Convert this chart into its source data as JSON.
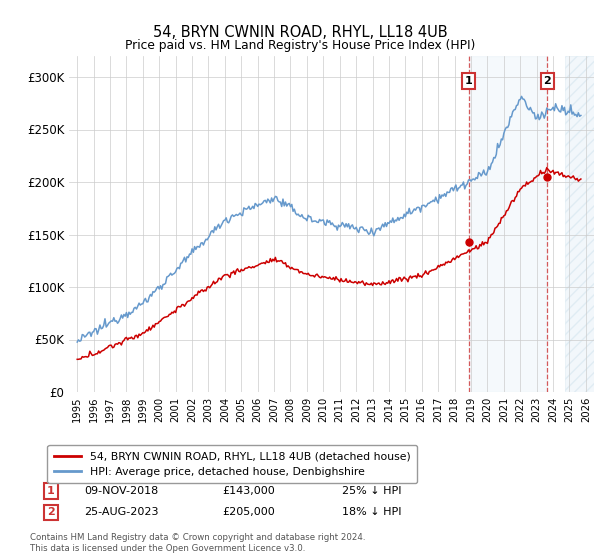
{
  "title": "54, BRYN CWNIN ROAD, RHYL, LL18 4UB",
  "subtitle": "Price paid vs. HM Land Registry's House Price Index (HPI)",
  "legend_label_red": "54, BRYN CWNIN ROAD, RHYL, LL18 4UB (detached house)",
  "legend_label_blue": "HPI: Average price, detached house, Denbighshire",
  "annotation1_date": "09-NOV-2018",
  "annotation1_price": "£143,000",
  "annotation1_pct": "25% ↓ HPI",
  "annotation2_date": "25-AUG-2023",
  "annotation2_price": "£205,000",
  "annotation2_pct": "18% ↓ HPI",
  "footer": "Contains HM Land Registry data © Crown copyright and database right 2024.\nThis data is licensed under the Open Government Licence v3.0.",
  "sale1_x": 2018.86,
  "sale1_y": 143000,
  "sale2_x": 2023.65,
  "sale2_y": 205000,
  "ylim": [
    0,
    320000
  ],
  "xlim": [
    1994.5,
    2026.5
  ],
  "yticks": [
    0,
    50000,
    100000,
    150000,
    200000,
    250000,
    300000
  ],
  "ytick_labels": [
    "£0",
    "£50K",
    "£100K",
    "£150K",
    "£200K",
    "£250K",
    "£300K"
  ],
  "color_red": "#cc0000",
  "color_blue": "#6699cc",
  "sale1_vline_color": "#cc3333",
  "sale2_vline_color": "#cc3333",
  "shade_color": "#cce0f0",
  "hatch_start_x": 2024.75
}
